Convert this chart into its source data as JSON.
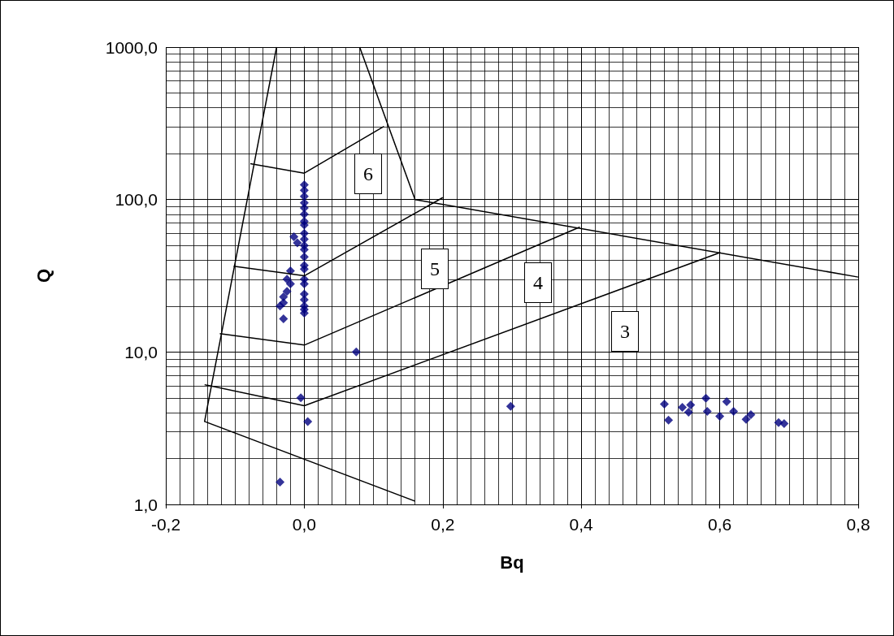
{
  "chart_data": {
    "type": "scatter",
    "xlabel": "Bq",
    "ylabel": "Q",
    "log": "y",
    "grid": true,
    "xlim": [
      -0.2,
      0.8
    ],
    "xticks": [
      {
        "value": -0.2,
        "label": "-0,2"
      },
      {
        "value": 0,
        "label": "0,0"
      },
      {
        "value": 0.2,
        "label": "0,2"
      },
      {
        "value": 0.4,
        "label": "0,4"
      },
      {
        "value": 0.6,
        "label": "0,6"
      },
      {
        "value": 0.8,
        "label": "0,8"
      }
    ],
    "ylim": [
      1,
      1000
    ],
    "yticks": [
      {
        "value": 1,
        "label": "1,0"
      },
      {
        "value": 10,
        "label": "10,0"
      },
      {
        "value": 100,
        "label": "100,0"
      },
      {
        "value": 1000,
        "label": "1000,0"
      }
    ],
    "annotations": [
      "6",
      "5",
      "4",
      "3"
    ],
    "series": [
      {
        "type": "line",
        "color": "#000000",
        "marker": "none",
        "x": [
          -0.04,
          -0.144,
          0.16
        ],
        "values": [
          1000,
          3.5,
          1.05
        ]
      },
      {
        "type": "line",
        "color": "#000000",
        "marker": "none",
        "x": [
          0.08,
          0.16,
          0.8
        ],
        "values": [
          1000,
          100,
          31
        ]
      },
      {
        "type": "line",
        "color": "#000000",
        "marker": "none",
        "x": [
          -0.078,
          0,
          0.115
        ],
        "values": [
          172,
          149,
          302
        ]
      },
      {
        "type": "line",
        "color": "#000000",
        "marker": "none",
        "x": [
          -0.102,
          0,
          0.2
        ],
        "values": [
          36.5,
          31.6,
          103
        ]
      },
      {
        "type": "line",
        "color": "#000000",
        "marker": "none",
        "x": [
          -0.122,
          0,
          0.398
        ],
        "values": [
          13.2,
          11.1,
          66
        ]
      },
      {
        "type": "line",
        "color": "#000000",
        "marker": "none",
        "x": [
          -0.144,
          0,
          0.601
        ],
        "values": [
          6.1,
          4.44,
          45
        ]
      },
      {
        "color": "#000080",
        "marker": "diamond",
        "x": [
          0,
          0,
          0,
          0,
          0,
          0,
          0,
          0,
          0,
          0,
          0,
          0,
          0,
          0,
          0,
          0,
          0,
          0,
          0,
          0,
          0,
          0,
          -0.015,
          -0.01,
          -0.02,
          -0.025,
          -0.02,
          -0.025,
          -0.03,
          -0.03,
          -0.035,
          -0.03,
          0.075,
          -0.005,
          0.005,
          -0.035,
          0.298,
          0.52,
          0.526,
          0.546,
          0.558,
          0.555,
          0.58,
          0.582,
          0.6,
          0.61,
          0.62,
          0.638,
          0.645,
          0.685,
          0.693
        ],
        "values": [
          125,
          115,
          105,
          95,
          88,
          80,
          72,
          68,
          60,
          55,
          50,
          47,
          42,
          37,
          35,
          30,
          28,
          24,
          22,
          20,
          19,
          18,
          57,
          52,
          34,
          30,
          28,
          25,
          23,
          21,
          20,
          16.5,
          10,
          5,
          3.5,
          1.4,
          4.4,
          4.55,
          3.57,
          4.33,
          4.5,
          4.03,
          4.97,
          4.08,
          3.79,
          4.72,
          4.08,
          3.62,
          3.88,
          3.44,
          3.39
        ]
      }
    ]
  }
}
